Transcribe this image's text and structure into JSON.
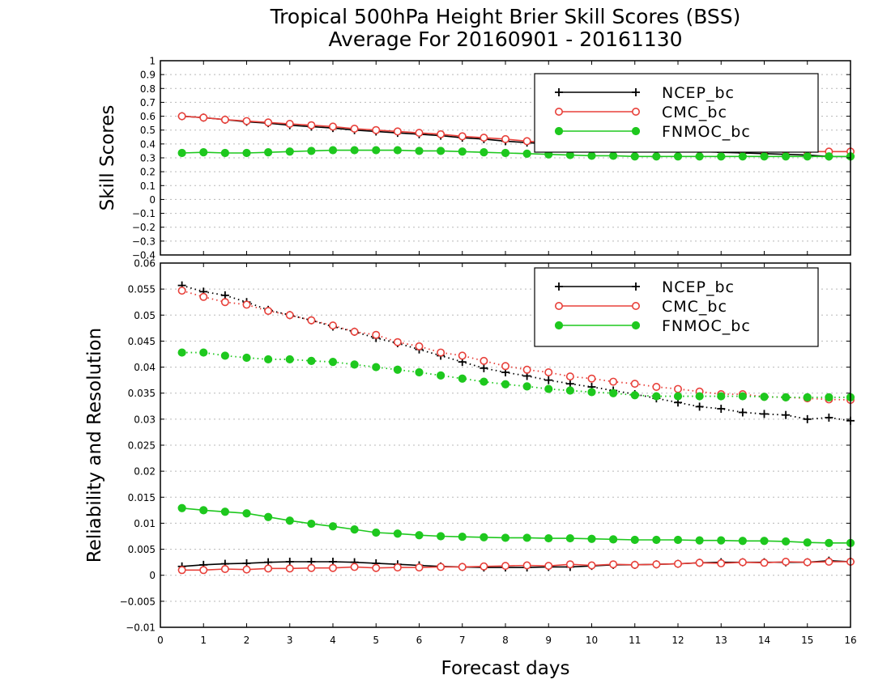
{
  "title_line1": "Tropical 500hPa Height Brier Skill Scores (BSS)",
  "title_line2": "Average For 20160901 - 20161130",
  "xlabel": "Forecast days",
  "colors": {
    "NCEP_bc": "#000000",
    "CMC_bc": "#e8403a",
    "FNMOC_bc": "#1ec81e"
  },
  "legend": [
    "NCEP_bc",
    "CMC_bc",
    "FNMOC_bc"
  ],
  "x_ticks": [
    "0",
    "1",
    "2",
    "3",
    "4",
    "5",
    "6",
    "7",
    "8",
    "9",
    "10",
    "11",
    "12",
    "13",
    "14",
    "15",
    "16"
  ],
  "chart_data": [
    {
      "type": "line",
      "ylabel": "Skill Scores",
      "xlim": [
        0,
        16
      ],
      "ylim": [
        -0.4,
        1
      ],
      "grid": true,
      "legend_position": "top-right",
      "y_ticks": [
        "−0.4",
        "−0.3",
        "−0.2",
        "−0.1",
        "0",
        "0.1",
        "0.2",
        "0.3",
        "0.4",
        "0.5",
        "0.6",
        "0.7",
        "0.8",
        "0.9",
        "1"
      ],
      "x": [
        0.5,
        1,
        1.5,
        2,
        2.5,
        3,
        3.5,
        4,
        4.5,
        5,
        5.5,
        6,
        6.5,
        7,
        7.5,
        8,
        8.5,
        9,
        9.5,
        10,
        10.5,
        11,
        11.5,
        12,
        12.5,
        13,
        13.5,
        14,
        14.5,
        15,
        15.5,
        16
      ],
      "series": [
        {
          "name": "NCEP_bc",
          "marker": "plus",
          "linestyle": "solid",
          "values": [
            0.6,
            0.59,
            0.575,
            0.56,
            0.55,
            0.535,
            0.525,
            0.515,
            0.5,
            0.49,
            0.48,
            0.47,
            0.46,
            0.445,
            0.435,
            0.42,
            0.41,
            0.4,
            0.39,
            0.38,
            0.37,
            0.36,
            0.355,
            0.35,
            0.345,
            0.34,
            0.335,
            0.33,
            0.325,
            0.32,
            0.31,
            0.31
          ]
        },
        {
          "name": "CMC_bc",
          "marker": "open-circle",
          "linestyle": "solid",
          "values": [
            0.6,
            0.59,
            0.575,
            0.565,
            0.555,
            0.545,
            0.535,
            0.525,
            0.51,
            0.5,
            0.49,
            0.48,
            0.47,
            0.455,
            0.445,
            0.435,
            0.42,
            0.41,
            0.4,
            0.39,
            0.38,
            0.375,
            0.37,
            0.365,
            0.36,
            0.36,
            0.355,
            0.35,
            0.35,
            0.345,
            0.345,
            0.345
          ]
        },
        {
          "name": "FNMOC_bc",
          "marker": "filled-circle",
          "linestyle": "solid",
          "values": [
            0.335,
            0.34,
            0.335,
            0.335,
            0.34,
            0.345,
            0.35,
            0.355,
            0.355,
            0.355,
            0.355,
            0.35,
            0.35,
            0.345,
            0.34,
            0.335,
            0.33,
            0.325,
            0.32,
            0.315,
            0.315,
            0.31,
            0.31,
            0.31,
            0.31,
            0.31,
            0.31,
            0.31,
            0.31,
            0.31,
            0.31,
            0.31
          ]
        }
      ]
    },
    {
      "type": "line",
      "ylabel": "Reliability and Resolution",
      "xlim": [
        0,
        16
      ],
      "ylim": [
        -0.01,
        0.06
      ],
      "grid": true,
      "legend_position": "top-right",
      "y_ticks": [
        "−0.01",
        "−0.005",
        "0",
        "0.005",
        "0.01",
        "0.015",
        "0.02",
        "0.025",
        "0.03",
        "0.035",
        "0.04",
        "0.045",
        "0.05",
        "0.055",
        "0.06"
      ],
      "x": [
        0.5,
        1,
        1.5,
        2,
        2.5,
        3,
        3.5,
        4,
        4.5,
        5,
        5.5,
        6,
        6.5,
        7,
        7.5,
        8,
        8.5,
        9,
        9.5,
        10,
        10.5,
        11,
        11.5,
        12,
        12.5,
        13,
        13.5,
        14,
        14.5,
        15,
        15.5,
        16
      ],
      "series": [
        {
          "name": "NCEP_bc",
          "kind": "resolution",
          "marker": "plus",
          "linestyle": "dotted",
          "values": [
            0.0557,
            0.0545,
            0.0538,
            0.0525,
            0.051,
            0.05,
            0.049,
            0.0478,
            0.0468,
            0.0456,
            0.0446,
            0.0434,
            0.0422,
            0.041,
            0.0398,
            0.039,
            0.0383,
            0.0375,
            0.0368,
            0.0362,
            0.0355,
            0.0348,
            0.034,
            0.0332,
            0.0324,
            0.032,
            0.0313,
            0.031,
            0.0308,
            0.03,
            0.0303,
            0.0297
          ]
        },
        {
          "name": "CMC_bc",
          "kind": "resolution",
          "marker": "open-circle",
          "linestyle": "dotted",
          "values": [
            0.0547,
            0.0535,
            0.0525,
            0.052,
            0.0508,
            0.05,
            0.049,
            0.048,
            0.0468,
            0.0462,
            0.0448,
            0.044,
            0.0428,
            0.0422,
            0.0412,
            0.0402,
            0.0395,
            0.039,
            0.0382,
            0.0378,
            0.0372,
            0.0368,
            0.0362,
            0.0358,
            0.0353,
            0.0348,
            0.0348,
            0.0343,
            0.0342,
            0.034,
            0.0338,
            0.0337
          ]
        },
        {
          "name": "FNMOC_bc",
          "kind": "resolution",
          "marker": "filled-circle",
          "linestyle": "dotted",
          "values": [
            0.0428,
            0.0428,
            0.0422,
            0.0418,
            0.0415,
            0.0415,
            0.0412,
            0.041,
            0.0405,
            0.04,
            0.0395,
            0.039,
            0.0384,
            0.0378,
            0.0372,
            0.0367,
            0.0363,
            0.0358,
            0.0355,
            0.0352,
            0.035,
            0.0346,
            0.0344,
            0.0344,
            0.0344,
            0.0344,
            0.0344,
            0.0343,
            0.0342,
            0.0342,
            0.0342,
            0.0342
          ]
        },
        {
          "name": "NCEP_bc",
          "kind": "reliability",
          "marker": "plus",
          "linestyle": "solid",
          "values": [
            0.0017,
            0.002,
            0.0022,
            0.0023,
            0.0025,
            0.0026,
            0.0026,
            0.0026,
            0.0025,
            0.0023,
            0.0021,
            0.0019,
            0.0017,
            0.0016,
            0.0015,
            0.0015,
            0.0015,
            0.0016,
            0.0016,
            0.0018,
            0.002,
            0.002,
            0.0021,
            0.0022,
            0.0024,
            0.0025,
            0.0025,
            0.0025,
            0.0025,
            0.0025,
            0.0028,
            0.0026
          ]
        },
        {
          "name": "CMC_bc",
          "kind": "reliability",
          "marker": "open-circle",
          "linestyle": "solid",
          "values": [
            0.001,
            0.001,
            0.0012,
            0.0011,
            0.0013,
            0.0013,
            0.0014,
            0.0014,
            0.0016,
            0.0014,
            0.0015,
            0.0015,
            0.0016,
            0.0016,
            0.0017,
            0.0018,
            0.0019,
            0.0018,
            0.0021,
            0.0019,
            0.0021,
            0.002,
            0.0021,
            0.0022,
            0.0024,
            0.0023,
            0.0025,
            0.0024,
            0.0026,
            0.0025,
            0.0026,
            0.0026
          ]
        },
        {
          "name": "FNMOC_bc",
          "kind": "reliability",
          "marker": "filled-circle",
          "linestyle": "solid",
          "values": [
            0.0129,
            0.0125,
            0.0122,
            0.0119,
            0.0112,
            0.0105,
            0.0099,
            0.0094,
            0.0088,
            0.0082,
            0.008,
            0.0077,
            0.0075,
            0.0074,
            0.0073,
            0.0072,
            0.0072,
            0.0071,
            0.0071,
            0.007,
            0.0069,
            0.0068,
            0.0068,
            0.0068,
            0.0067,
            0.0067,
            0.0066,
            0.0066,
            0.0065,
            0.0063,
            0.0062,
            0.0062
          ]
        }
      ]
    }
  ]
}
